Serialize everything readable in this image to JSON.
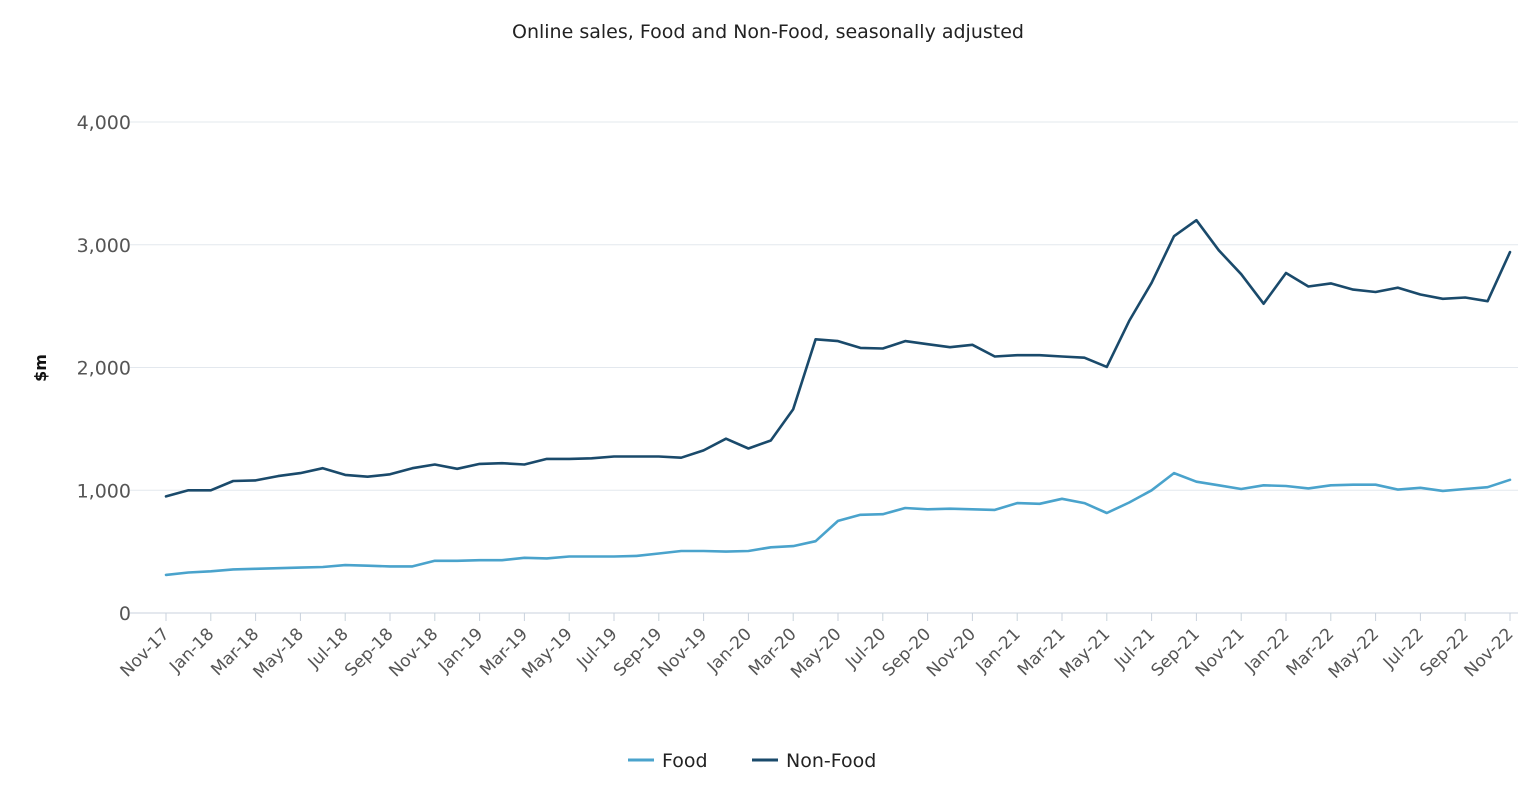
{
  "chart_data": {
    "type": "line",
    "title": "Online sales, Food and Non-Food, seasonally adjusted",
    "xlabel": "",
    "ylabel": "$m",
    "ylim": [
      0,
      4000
    ],
    "yticks": [
      0,
      1000,
      2000,
      3000,
      4000
    ],
    "ytick_labels": [
      "0",
      "1,000",
      "2,000",
      "3,000",
      "4,000"
    ],
    "grid": true,
    "legend_position": "bottom",
    "x": [
      "Nov-17",
      "Dec-17",
      "Jan-18",
      "Feb-18",
      "Mar-18",
      "Apr-18",
      "May-18",
      "Jun-18",
      "Jul-18",
      "Aug-18",
      "Sep-18",
      "Oct-18",
      "Nov-18",
      "Dec-18",
      "Jan-19",
      "Feb-19",
      "Mar-19",
      "Apr-19",
      "May-19",
      "Jun-19",
      "Jul-19",
      "Aug-19",
      "Sep-19",
      "Oct-19",
      "Nov-19",
      "Dec-19",
      "Jan-20",
      "Feb-20",
      "Mar-20",
      "Apr-20",
      "May-20",
      "Jun-20",
      "Jul-20",
      "Aug-20",
      "Sep-20",
      "Oct-20",
      "Nov-20",
      "Dec-20",
      "Jan-21",
      "Feb-21",
      "Mar-21",
      "Apr-21",
      "May-21",
      "Jun-21",
      "Jul-21",
      "Aug-21",
      "Sep-21",
      "Oct-21",
      "Nov-21",
      "Dec-21",
      "Jan-22",
      "Feb-22",
      "Mar-22",
      "Apr-22",
      "May-22",
      "Jun-22",
      "Jul-22",
      "Aug-22",
      "Sep-22",
      "Oct-22",
      "Nov-22"
    ],
    "xtick_labels": [
      "Nov-17",
      "Jan-18",
      "Mar-18",
      "May-18",
      "Jul-18",
      "Sep-18",
      "Nov-18",
      "Jan-19",
      "Mar-19",
      "May-19",
      "Jul-19",
      "Sep-19",
      "Nov-19",
      "Jan-20",
      "Mar-20",
      "May-20",
      "Jul-20",
      "Sep-20",
      "Nov-20",
      "Jan-21",
      "Mar-21",
      "May-21",
      "Jul-21",
      "Sep-21",
      "Nov-21",
      "Jan-22",
      "Mar-22",
      "May-22",
      "Jul-22",
      "Sep-22",
      "Nov-22"
    ],
    "series": [
      {
        "name": "Food",
        "color": "#4aa3cc",
        "values": [
          310,
          330,
          340,
          355,
          360,
          365,
          370,
          375,
          390,
          385,
          380,
          380,
          425,
          425,
          430,
          430,
          450,
          445,
          460,
          460,
          460,
          465,
          485,
          505,
          505,
          500,
          505,
          535,
          545,
          585,
          750,
          800,
          805,
          855,
          845,
          850,
          845,
          840,
          895,
          890,
          930,
          895,
          815,
          900,
          1000,
          1140,
          1070,
          1040,
          1010,
          1040,
          1035,
          1015,
          1040,
          1045,
          1045,
          1005,
          1020,
          995,
          1010,
          1025,
          1085
        ]
      },
      {
        "name": "Non-Food",
        "color": "#1a4a6b",
        "values": [
          950,
          1000,
          1000,
          1075,
          1080,
          1115,
          1140,
          1180,
          1125,
          1110,
          1130,
          1180,
          1210,
          1175,
          1215,
          1220,
          1210,
          1255,
          1255,
          1260,
          1275,
          1275,
          1275,
          1265,
          1325,
          1420,
          1340,
          1405,
          1660,
          2230,
          2215,
          2160,
          2155,
          2215,
          2190,
          2165,
          2185,
          2090,
          2100,
          2100,
          2090,
          2080,
          2005,
          2380,
          2690,
          3070,
          3200,
          2955,
          2760,
          2520,
          2770,
          2660,
          2685,
          2635,
          2615,
          2650,
          2595,
          2560,
          2570,
          2540,
          2940
        ]
      }
    ]
  }
}
